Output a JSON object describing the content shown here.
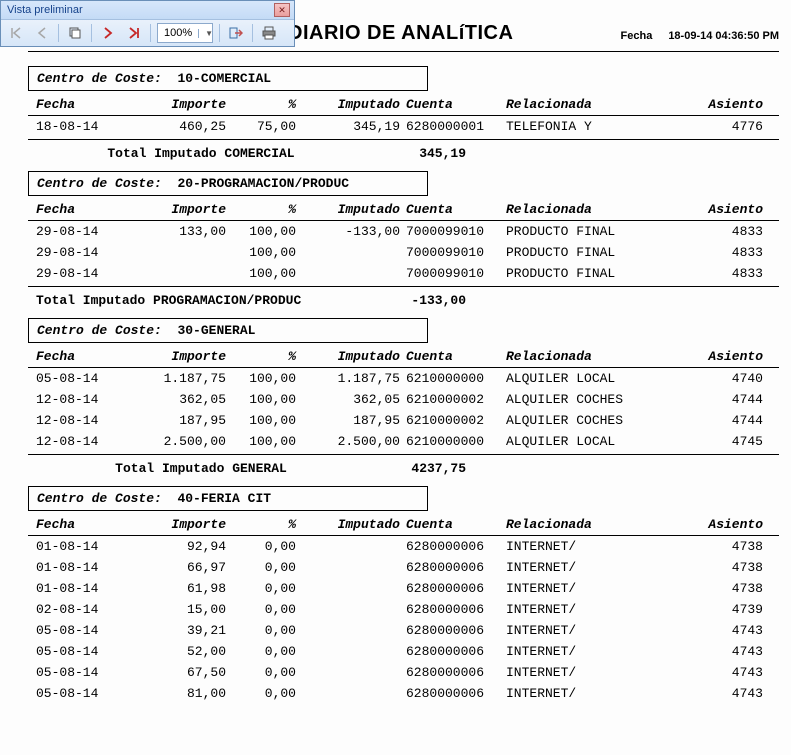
{
  "toolbar": {
    "title": "Vista preliminar",
    "zoom": "100%"
  },
  "header": {
    "title": "DIARIO DE ANALíTICA",
    "fecha_label": "Fecha",
    "fecha_value": "18-09-14 04:36:50 PM"
  },
  "col_labels": {
    "fecha": "Fecha",
    "importe": "Importe",
    "pct": "%",
    "imputado": "Imputado",
    "cuenta": "Cuenta",
    "relacionada": "Relacionada",
    "asiento": "Asiento"
  },
  "group_label": "Centro de Coste:",
  "groups": [
    {
      "name": "10-COMERCIAL",
      "rows": [
        {
          "fecha": "18-08-14",
          "importe": "460,25",
          "pct": "75,00",
          "imputado": "345,19",
          "cuenta": "6280000001",
          "rel": "TELEFONIA Y",
          "asiento": "4776"
        }
      ],
      "total_label": "Total Imputado COMERCIAL",
      "total_center": true,
      "total_value": "345,19"
    },
    {
      "name": "20-PROGRAMACION/PRODUC",
      "rows": [
        {
          "fecha": "29-08-14",
          "importe": "133,00",
          "pct": "100,00",
          "imputado": "-133,00",
          "cuenta": "7000099010",
          "rel": "PRODUCTO FINAL",
          "asiento": "4833"
        },
        {
          "fecha": "29-08-14",
          "importe": "",
          "pct": "100,00",
          "imputado": "",
          "cuenta": "7000099010",
          "rel": "PRODUCTO FINAL",
          "asiento": "4833"
        },
        {
          "fecha": "29-08-14",
          "importe": "",
          "pct": "100,00",
          "imputado": "",
          "cuenta": "7000099010",
          "rel": "PRODUCTO FINAL",
          "asiento": "4833"
        }
      ],
      "total_label": "Total Imputado PROGRAMACION/PRODUC",
      "total_center": false,
      "total_value": "-133,00"
    },
    {
      "name": "30-GENERAL",
      "rows": [
        {
          "fecha": "05-08-14",
          "importe": "1.187,75",
          "pct": "100,00",
          "imputado": "1.187,75",
          "cuenta": "6210000000",
          "rel": "ALQUILER LOCAL",
          "asiento": "4740"
        },
        {
          "fecha": "12-08-14",
          "importe": "362,05",
          "pct": "100,00",
          "imputado": "362,05",
          "cuenta": "6210000002",
          "rel": "ALQUILER COCHES",
          "asiento": "4744"
        },
        {
          "fecha": "12-08-14",
          "importe": "187,95",
          "pct": "100,00",
          "imputado": "187,95",
          "cuenta": "6210000002",
          "rel": "ALQUILER COCHES",
          "asiento": "4744"
        },
        {
          "fecha": "12-08-14",
          "importe": "2.500,00",
          "pct": "100,00",
          "imputado": "2.500,00",
          "cuenta": "6210000000",
          "rel": "ALQUILER LOCAL",
          "asiento": "4745"
        }
      ],
      "total_label": "Total Imputado GENERAL",
      "total_center": true,
      "total_value": "4237,75"
    },
    {
      "name": "40-FERIA CIT",
      "rows": [
        {
          "fecha": "01-08-14",
          "importe": "92,94",
          "pct": "0,00",
          "imputado": "",
          "cuenta": "6280000006",
          "rel": "INTERNET/",
          "asiento": "4738"
        },
        {
          "fecha": "01-08-14",
          "importe": "66,97",
          "pct": "0,00",
          "imputado": "",
          "cuenta": "6280000006",
          "rel": "INTERNET/",
          "asiento": "4738"
        },
        {
          "fecha": "01-08-14",
          "importe": "61,98",
          "pct": "0,00",
          "imputado": "",
          "cuenta": "6280000006",
          "rel": "INTERNET/",
          "asiento": "4738"
        },
        {
          "fecha": "02-08-14",
          "importe": "15,00",
          "pct": "0,00",
          "imputado": "",
          "cuenta": "6280000006",
          "rel": "INTERNET/",
          "asiento": "4739"
        },
        {
          "fecha": "05-08-14",
          "importe": "39,21",
          "pct": "0,00",
          "imputado": "",
          "cuenta": "6280000006",
          "rel": "INTERNET/",
          "asiento": "4743"
        },
        {
          "fecha": "05-08-14",
          "importe": "52,00",
          "pct": "0,00",
          "imputado": "",
          "cuenta": "6280000006",
          "rel": "INTERNET/",
          "asiento": "4743"
        },
        {
          "fecha": "05-08-14",
          "importe": "67,50",
          "pct": "0,00",
          "imputado": "",
          "cuenta": "6280000006",
          "rel": "INTERNET/",
          "asiento": "4743"
        },
        {
          "fecha": "05-08-14",
          "importe": "81,00",
          "pct": "0,00",
          "imputado": "",
          "cuenta": "6280000006",
          "rel": "INTERNET/",
          "asiento": "4743"
        }
      ],
      "total_label": "",
      "total_value": ""
    }
  ]
}
